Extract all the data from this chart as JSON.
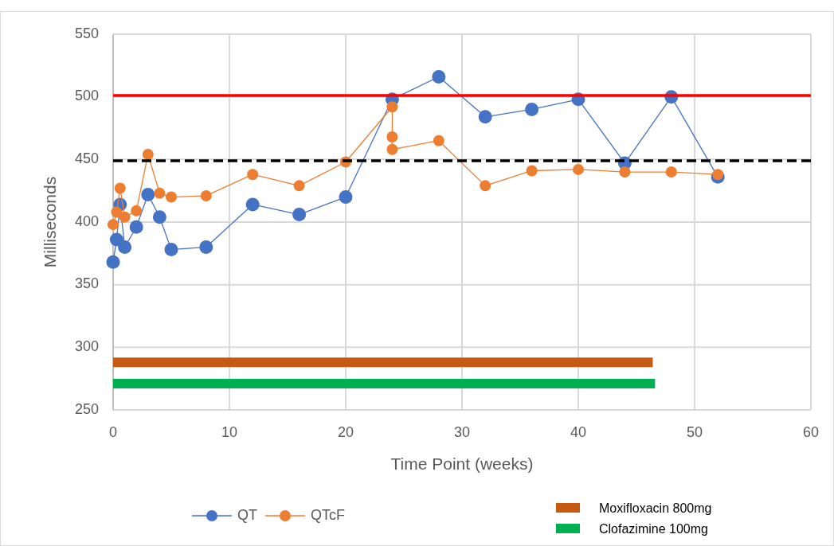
{
  "chart_data": {
    "type": "line",
    "xlabel": "Time Point (weeks)",
    "ylabel": "Milliseconds",
    "xlim": [
      0,
      60
    ],
    "xticks": [
      0,
      10,
      20,
      30,
      40,
      50,
      60
    ],
    "ylim": [
      250,
      550
    ],
    "yticks": [
      250,
      300,
      350,
      400,
      450,
      500,
      550
    ],
    "grid": true,
    "legend": "bottom",
    "marker": "circle",
    "line_style": "solid",
    "series": [
      {
        "name": "QT",
        "color": "#4472c4",
        "x": [
          0,
          0.3,
          0.6,
          1,
          2,
          3,
          4,
          5,
          8,
          12,
          16,
          20,
          24,
          28,
          32,
          36,
          40,
          44,
          48,
          52
        ],
        "values": [
          368,
          386,
          414,
          380,
          396,
          422,
          404,
          378,
          380,
          414,
          406,
          420,
          498,
          516,
          484,
          490,
          498,
          447,
          500,
          436
        ]
      },
      {
        "name": "QTcF",
        "color": "#ed7d31",
        "x": [
          0,
          0.3,
          0.6,
          1,
          2,
          3,
          4,
          5,
          8,
          12,
          16,
          20,
          24,
          24,
          24,
          28,
          32,
          36,
          40,
          44,
          48,
          52
        ],
        "values": [
          398,
          408,
          427,
          404,
          409,
          454,
          423,
          420,
          421,
          438,
          429,
          448,
          492,
          468,
          458,
          465,
          429,
          441,
          442,
          440,
          440,
          438
        ]
      },
      {
        "name": "Moxifloxacin 800mg",
        "color": "#c55a11",
        "marker": "none",
        "x": [
          0,
          46.4
        ],
        "values": [
          288,
          288
        ]
      },
      {
        "name": "Clofazimine 100mg",
        "color": "#00b050",
        "marker": "none",
        "x": [
          0,
          46.6
        ],
        "values": [
          271,
          271
        ]
      }
    ],
    "ref_lines": [
      {
        "axis": "y",
        "value": 501,
        "color": "#ff0000",
        "line_style": "solid"
      },
      {
        "axis": "y",
        "value": 449,
        "color": "#000000",
        "line_style": "dashed"
      }
    ]
  }
}
